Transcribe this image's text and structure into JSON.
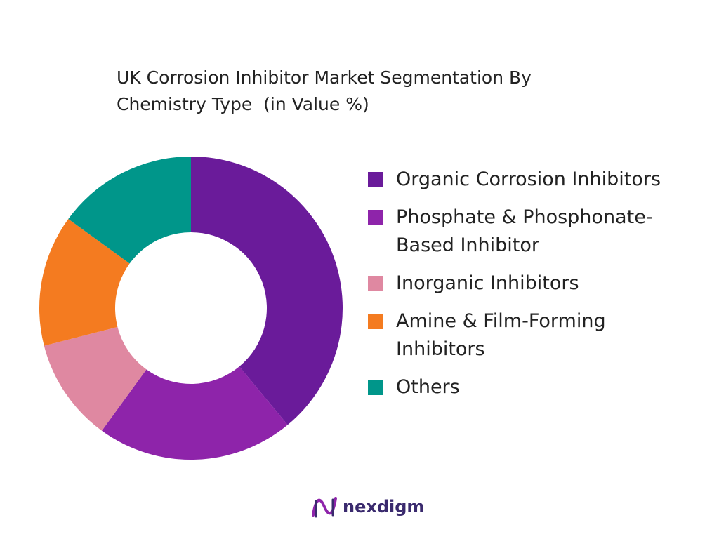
{
  "chart_data": {
    "type": "pie",
    "title": "UK Corrosion Inhibitor Market Segmentation By Chemistry Type  (in Value %)",
    "categories": [
      "Organic Corrosion Inhibitors",
      "Phosphate & Phosphonate-Based Inhibitor",
      "Inorganic Inhibitors",
      "Amine & Film-Forming Inhibitors",
      "Others"
    ],
    "values": [
      39,
      21,
      11,
      14,
      15
    ],
    "colors": [
      "#6a1b9a",
      "#8e24aa",
      "#df88a1",
      "#f47b20",
      "#00968a"
    ],
    "legend": "right"
  },
  "footer": {
    "brand": "nexdigm"
  }
}
